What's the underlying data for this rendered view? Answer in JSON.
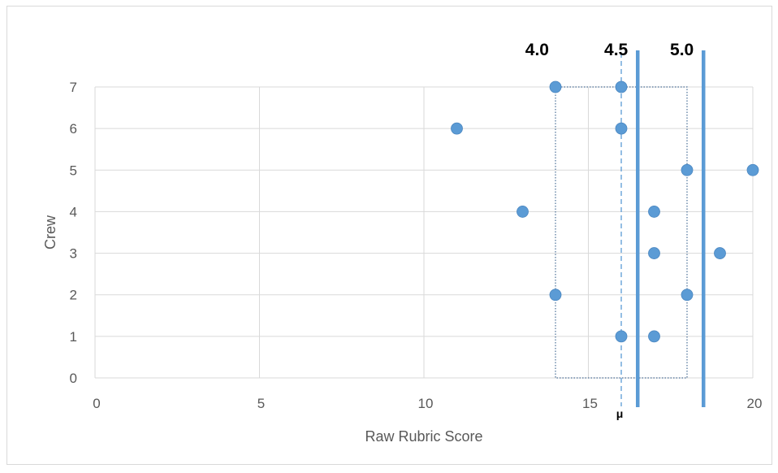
{
  "chart_data": {
    "type": "scatter",
    "title": "",
    "xlabel": "Raw Rubric Score",
    "ylabel": "Crew",
    "xlim": [
      0,
      20
    ],
    "ylim": [
      0,
      7
    ],
    "x_ticks": [
      "0",
      "5",
      "10",
      "15",
      "20"
    ],
    "y_ticks": [
      "0",
      "1",
      "2",
      "3",
      "4",
      "5",
      "6",
      "7"
    ],
    "grid": true,
    "legend": "none",
    "colors": {
      "points": "#5b9bd5",
      "threshold_lines": "#5b9bd5",
      "mean_line": "#5b9bd5",
      "range_box": "#4a6f96",
      "grid": "#d9d9d9",
      "text": "#595959"
    },
    "series": [
      {
        "points": [
          {
            "x": 14,
            "y": 7
          },
          {
            "x": 16,
            "y": 7
          },
          {
            "x": 11,
            "y": 6
          },
          {
            "x": 16,
            "y": 6
          },
          {
            "x": 18,
            "y": 5
          },
          {
            "x": 20,
            "y": 5
          },
          {
            "x": 13,
            "y": 4
          },
          {
            "x": 17,
            "y": 4
          },
          {
            "x": 17,
            "y": 3
          },
          {
            "x": 19,
            "y": 3
          },
          {
            "x": 14,
            "y": 2
          },
          {
            "x": 18,
            "y": 2
          },
          {
            "x": 16,
            "y": 1
          },
          {
            "x": 17,
            "y": 1
          }
        ]
      }
    ],
    "threshold_lines": [
      {
        "x": 16.5,
        "label": "4.5"
      },
      {
        "x": 18.5,
        "label": "5.0"
      }
    ],
    "threshold_label_left": {
      "label": "4.0"
    },
    "mean_line": {
      "x": 16,
      "label": "μ"
    },
    "range_box": {
      "x_min": 14,
      "x_max": 18,
      "y_min": 0,
      "y_max": 7
    }
  }
}
